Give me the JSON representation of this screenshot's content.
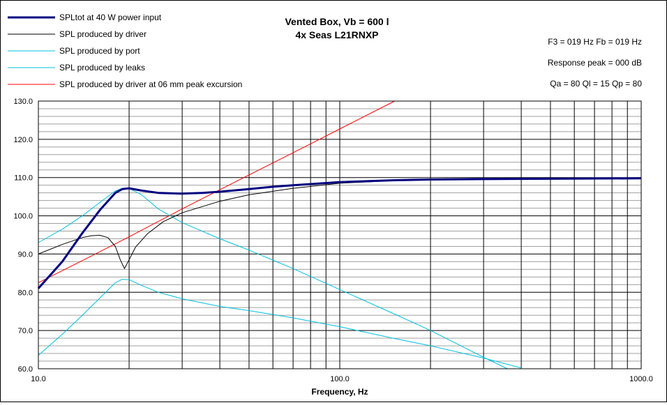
{
  "chart_data": {
    "type": "line",
    "title": "Vented Box, Vb = 600 l",
    "subtitle": "4x Seas L21RNXP",
    "xlabel": "Frequency, Hz",
    "ylabel": "",
    "xscale": "log",
    "xlim": [
      10,
      1000
    ],
    "ylim": [
      60,
      130
    ],
    "x_tick_labels": [
      "10.0",
      "100.0",
      "1000.0"
    ],
    "y_tick_labels": [
      "60.0",
      "70.0",
      "80.0",
      "90.0",
      "100.0",
      "110.0",
      "120.0",
      "130.0"
    ],
    "grid": true,
    "legend_position": "top-left",
    "info_lines": [
      "F3 = 019 Hz  Fb = 019 Hz",
      "Response peak = 000 dB",
      "Qa = 80  Ql = 15  Qp = 80"
    ],
    "series": [
      {
        "name": "SPLtot at 40 W power input",
        "color": "#00007f",
        "width": "thick",
        "x": [
          10,
          12,
          14,
          16,
          18,
          19,
          20,
          22,
          25,
          30,
          35,
          40,
          50,
          60,
          70,
          100,
          150,
          200,
          300,
          500,
          1000
        ],
        "y": [
          81,
          88,
          95.5,
          101.5,
          106,
          107,
          107.2,
          106.6,
          106,
          105.8,
          106,
          106.3,
          107,
          107.6,
          108,
          108.8,
          109.3,
          109.5,
          109.6,
          109.7,
          109.8
        ]
      },
      {
        "name": "SPL produced by driver",
        "color": "#000000",
        "width": "thin",
        "x": [
          10,
          12,
          14,
          15,
          16,
          17,
          18,
          18.7,
          19.3,
          20,
          21,
          23,
          26,
          30,
          40,
          50,
          70,
          100,
          150,
          200,
          300,
          500,
          1000
        ],
        "y": [
          90,
          92.5,
          94.3,
          94.8,
          94.9,
          94.3,
          92,
          88.5,
          86.2,
          88.5,
          91.8,
          95.3,
          98.5,
          100.8,
          103.8,
          105.5,
          107.2,
          108.5,
          109.2,
          109.5,
          109.6,
          109.7,
          109.8
        ]
      },
      {
        "name": "SPL produced by port",
        "color": "#00bfdf",
        "width": "thin",
        "x": [
          10,
          12,
          14,
          16,
          18,
          19,
          20,
          22,
          25,
          30,
          40,
          50,
          70,
          100,
          150,
          200,
          300,
          360
        ],
        "y": [
          93,
          96.5,
          100,
          103.5,
          106.5,
          107.2,
          107.2,
          105.5,
          101.8,
          98.2,
          94,
          91,
          86.2,
          80.7,
          74.5,
          70,
          63,
          60
        ]
      },
      {
        "name": "SPL produced by leaks",
        "color": "#00bfdf",
        "width": "thin",
        "x": [
          10,
          12,
          14,
          16,
          18,
          19,
          20,
          22,
          25,
          30,
          40,
          50,
          70,
          100,
          150,
          200,
          300,
          400
        ],
        "y": [
          63.5,
          69,
          74,
          78.5,
          82.5,
          83.4,
          83.3,
          81.8,
          80,
          78.3,
          76.3,
          75.2,
          73.3,
          71,
          68,
          66,
          62.8,
          60.2
        ]
      },
      {
        "name": "SPL produced by driver at 06 mm peak excursion",
        "color": "#ff0000",
        "width": "thin",
        "x": [
          10,
          15,
          20,
          30,
          50,
          80,
          100,
          152
        ],
        "y": [
          82.5,
          89.5,
          94.5,
          101.8,
          110.7,
          118.8,
          122.7,
          130
        ]
      }
    ]
  }
}
